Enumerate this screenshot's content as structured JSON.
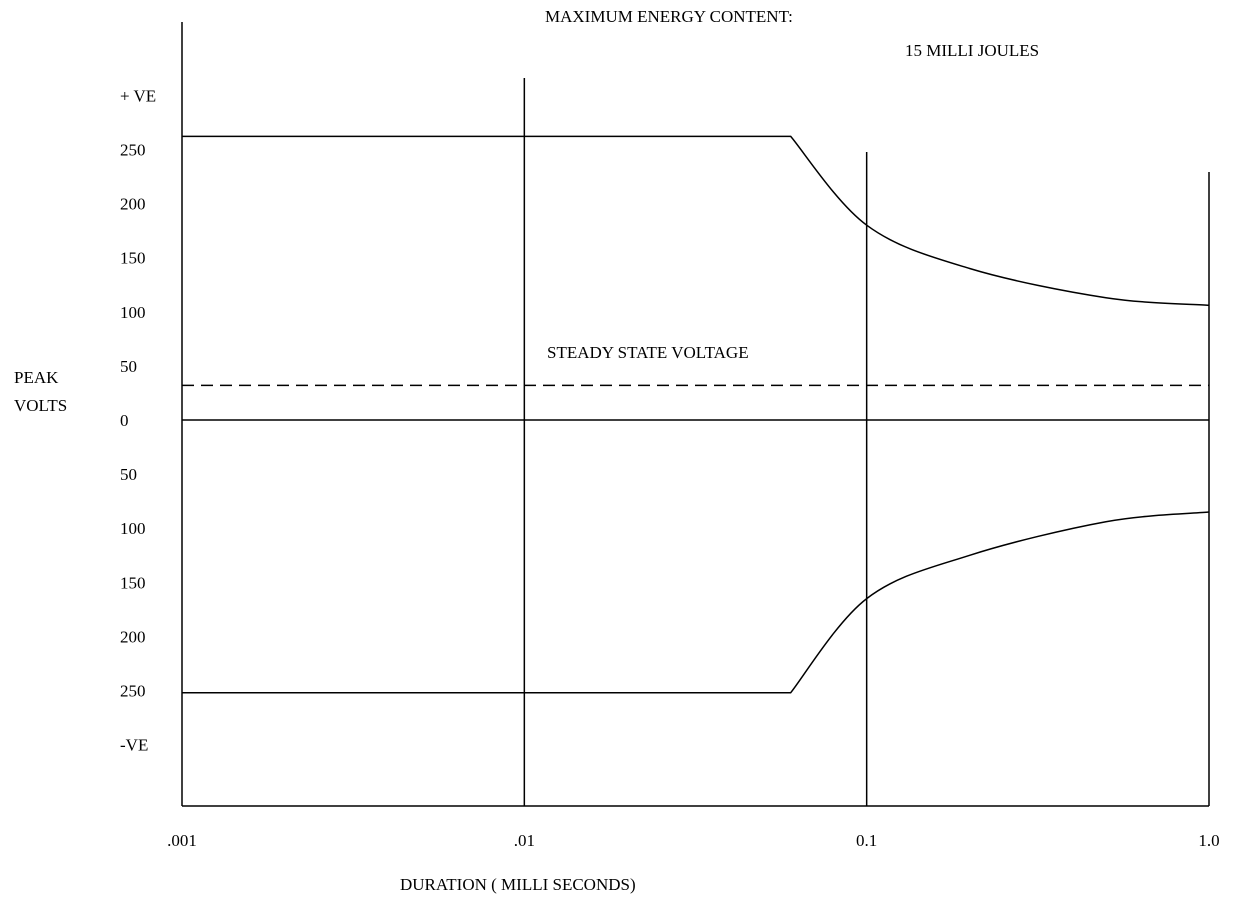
{
  "chart_data": {
    "type": "line",
    "title_line1": "MAXIMUM  ENERGY CONTENT:",
    "title_line2": "15 MILLI  JOULES",
    "xlabel": "DURATION  ( MILLI SECONDS)",
    "ylabel_line1": "PEAK",
    "ylabel_line2": "VOLTS",
    "x_scale": "log",
    "xlim": [
      0.001,
      1.0
    ],
    "x_ticks": [
      {
        "value": 0.001,
        "label": ".001"
      },
      {
        "value": 0.01,
        "label": ".01"
      },
      {
        "value": 0.1,
        "label": "0.1"
      },
      {
        "value": 1.0,
        "label": "1.0"
      }
    ],
    "y_ticks": [
      {
        "value": 300,
        "label": "+ VE"
      },
      {
        "value": 250,
        "label": "250"
      },
      {
        "value": 200,
        "label": "200"
      },
      {
        "value": 150,
        "label": "150"
      },
      {
        "value": 100,
        "label": "100"
      },
      {
        "value": 50,
        "label": "50"
      },
      {
        "value": 0,
        "label": "0"
      },
      {
        "value": -50,
        "label": "50"
      },
      {
        "value": -100,
        "label": "100"
      },
      {
        "value": -150,
        "label": "150"
      },
      {
        "value": -200,
        "label": "200"
      },
      {
        "value": -250,
        "label": "250"
      },
      {
        "value": -300,
        "label": "-VE"
      }
    ],
    "series": [
      {
        "values": [
          [
            0.001,
            262
          ],
          [
            0.06,
            262
          ],
          [
            0.1,
            180
          ],
          [
            0.2,
            140
          ],
          [
            0.5,
            113
          ],
          [
            1.0,
            106
          ]
        ]
      },
      {
        "values": [
          [
            0.001,
            -252
          ],
          [
            0.06,
            -252
          ],
          [
            0.1,
            -165
          ],
          [
            0.2,
            -125
          ],
          [
            0.5,
            -94
          ],
          [
            1.0,
            -85
          ]
        ]
      }
    ],
    "reference_line": {
      "label": "STEADY STATE VOLTAGE",
      "value": 32
    },
    "zero_line": 0
  }
}
